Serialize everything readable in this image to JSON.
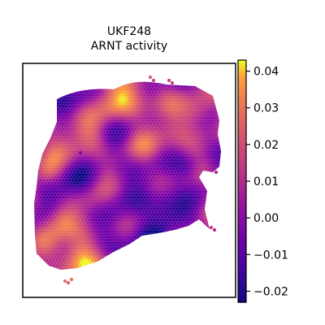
{
  "chart_data": {
    "type": "heatmap",
    "title_line1": "UKF248",
    "title_line2": "ARNT activity",
    "xlabel": "",
    "ylabel": "",
    "colormap": "plasma",
    "colorbar": {
      "range": [
        -0.023,
        0.043
      ],
      "ticks": [
        {
          "value": 0.04,
          "label": "0.04"
        },
        {
          "value": 0.03,
          "label": "0.03"
        },
        {
          "value": 0.02,
          "label": "0.02"
        },
        {
          "value": 0.01,
          "label": "0.01"
        },
        {
          "value": 0.0,
          "label": "0.00"
        },
        {
          "value": -0.01,
          "label": "−0.01"
        },
        {
          "value": -0.02,
          "label": "−0.02"
        }
      ]
    },
    "grid": false,
    "spot_values_description_omitted": true,
    "colors": {
      "low": "#0d0887",
      "mid": "#cc4778",
      "high": "#f0f921"
    }
  }
}
